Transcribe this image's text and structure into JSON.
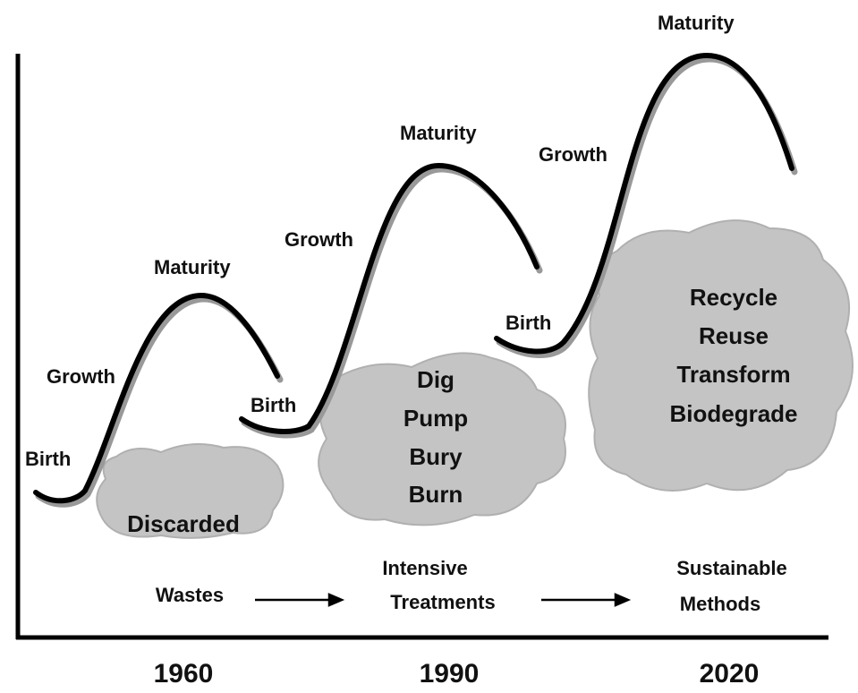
{
  "curves": [
    {
      "birth": "Birth",
      "growth": "Growth",
      "maturity": "Maturity"
    },
    {
      "birth": "Birth",
      "growth": "Growth",
      "maturity": "Maturity"
    },
    {
      "birth": "Birth",
      "growth": "Growth",
      "maturity": "Maturity"
    }
  ],
  "clouds": [
    {
      "lines": [
        "Discarded"
      ]
    },
    {
      "lines": [
        "Dig",
        "Pump",
        "Bury",
        "Burn"
      ]
    },
    {
      "lines": [
        "Recycle",
        "Reuse",
        "Transform",
        "Biodegrade"
      ]
    }
  ],
  "phases": [
    {
      "lines": [
        "Wastes"
      ]
    },
    {
      "lines": [
        "Intensive",
        "Treatments"
      ]
    },
    {
      "lines": [
        "Sustainable",
        "Methods"
      ]
    }
  ],
  "years": [
    "1960",
    "1990",
    "2020"
  ]
}
